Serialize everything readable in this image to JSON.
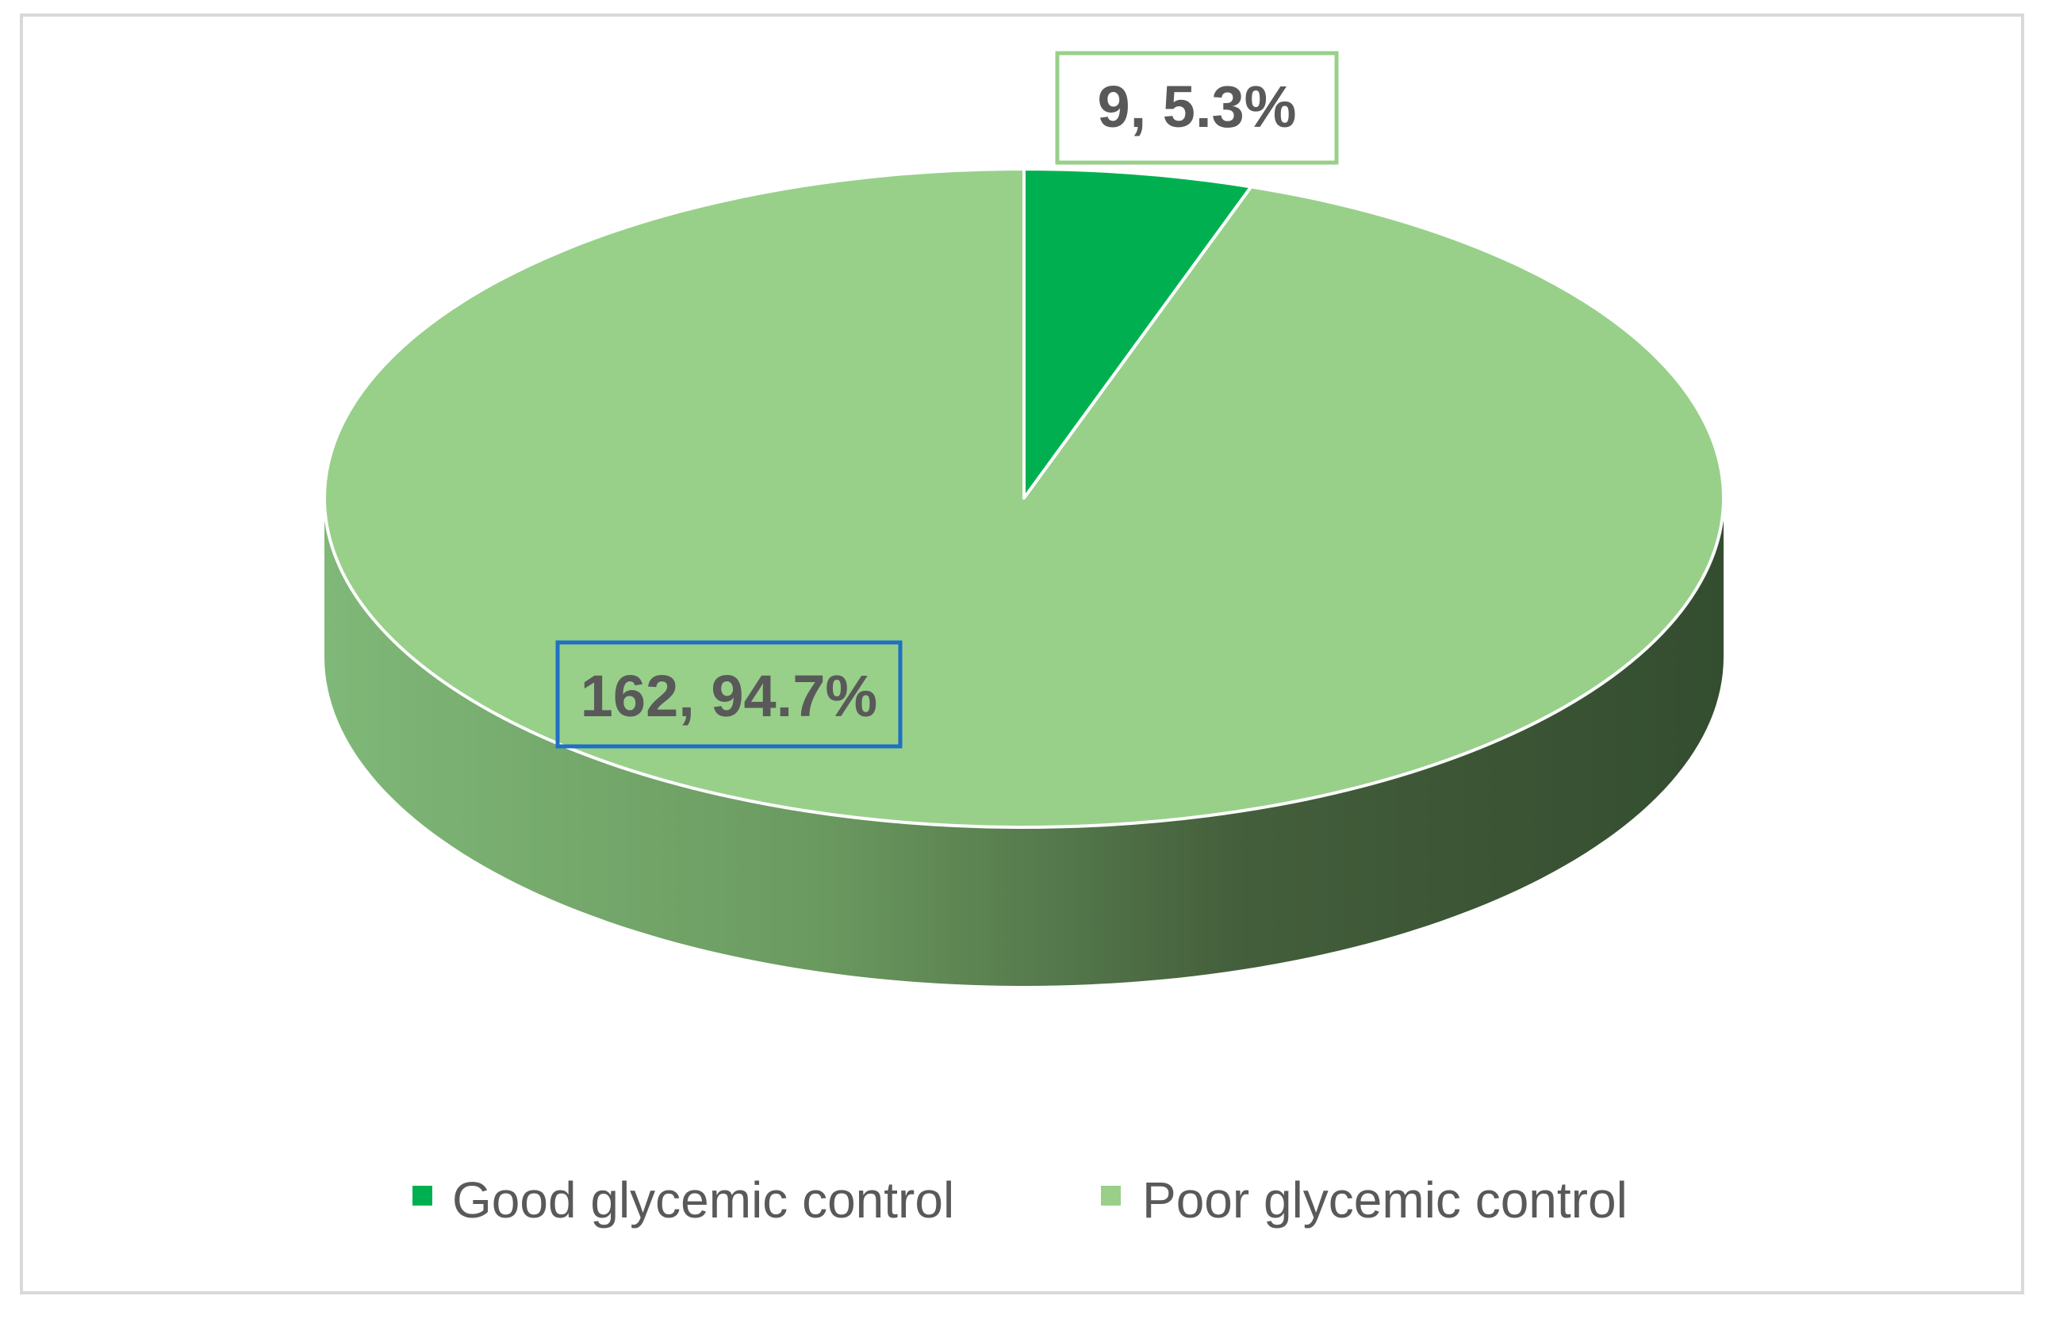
{
  "chart_data": {
    "type": "pie",
    "style": "3d",
    "title": "",
    "categories": [
      "Good glycemic control",
      "Poor glycemic control"
    ],
    "values": [
      9,
      162
    ],
    "percentages": [
      5.3,
      94.7
    ],
    "data_labels": [
      "9, 5.3%",
      "162, 94.7%"
    ],
    "colors": [
      "#00b050",
      "#98d08a"
    ],
    "side_colors": [
      "#00803a",
      "#6aa35e"
    ],
    "label_border_colors": [
      "#98d08a",
      "#1f6fc4"
    ],
    "legend": {
      "position": "bottom",
      "entries": [
        "Good glycemic control",
        "Poor glycemic control"
      ]
    }
  }
}
